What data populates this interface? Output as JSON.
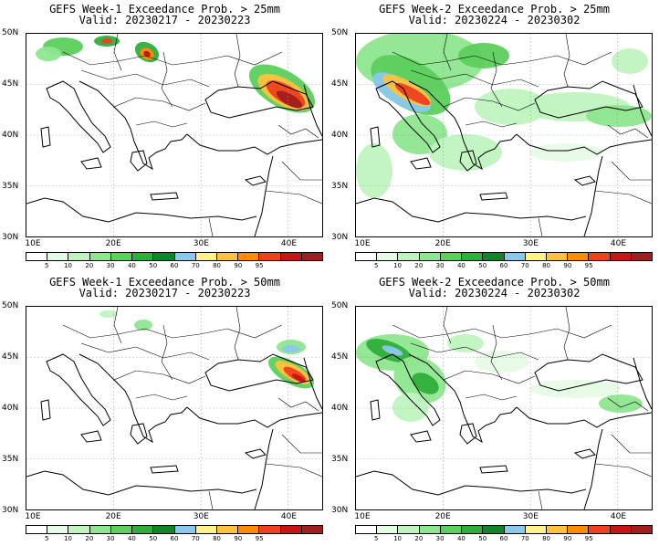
{
  "colorbar": {
    "colors": [
      "#ffffff",
      "#e6fbe6",
      "#bff4bf",
      "#8ee68e",
      "#5ccf5c",
      "#2fae3b",
      "#12852a",
      "#8cc8ec",
      "#fff28c",
      "#ffc23c",
      "#ff8c00",
      "#f04020",
      "#c81414",
      "#a01e1e"
    ],
    "labels": [
      "5",
      "10",
      "20",
      "30",
      "40",
      "50",
      "60",
      "70",
      "80",
      "90",
      "95"
    ]
  },
  "axes": {
    "lon_labels": [
      "10E",
      "20E",
      "30E",
      "40E"
    ],
    "lat_labels": [
      "50N",
      "45N",
      "40N",
      "35N",
      "30N"
    ]
  },
  "panels": [
    {
      "title": "GEFS Week-1 Exceedance Prob. > 25mm",
      "valid": "Valid: 20230217 - 20230223"
    },
    {
      "title": "GEFS Week-2 Exceedance Prob. > 25mm",
      "valid": "Valid: 20230224 - 20230302"
    },
    {
      "title": "GEFS Week-1 Exceedance Prob. > 50mm",
      "valid": "Valid: 20230217 - 20230223"
    },
    {
      "title": "GEFS Week-2 Exceedance Prob. > 50mm",
      "valid": "Valid: 20230224 - 20230302"
    }
  ]
}
